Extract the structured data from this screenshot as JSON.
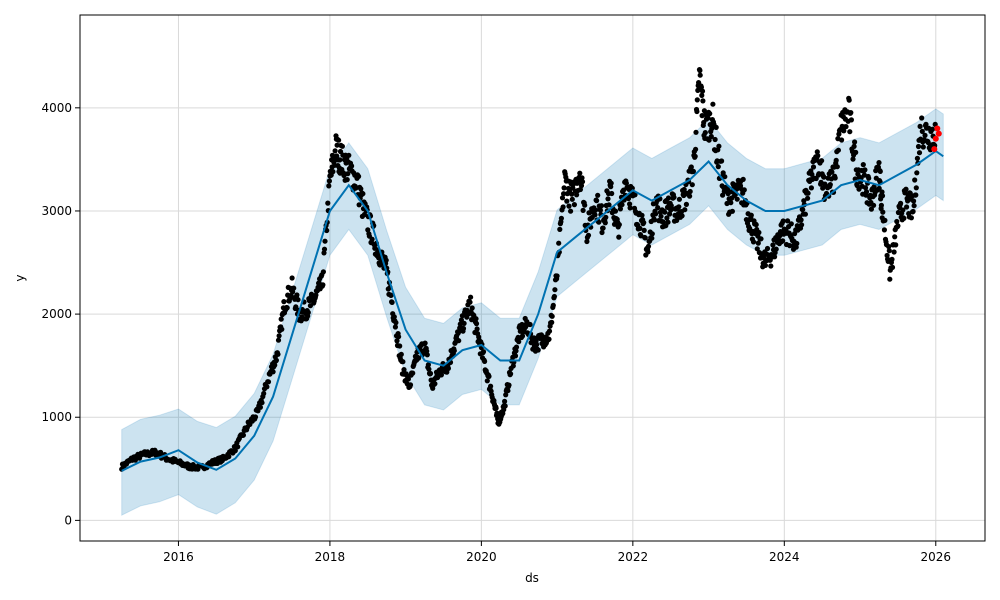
{
  "chart_data": {
    "type": "line",
    "title": "",
    "xlabel": "ds",
    "ylabel": "y",
    "x_ticks": [
      "2016",
      "2018",
      "2020",
      "2022",
      "2024",
      "2026"
    ],
    "y_ticks": [
      "0",
      "1000",
      "2000",
      "3000",
      "4000"
    ],
    "xlim": [
      2014.7,
      2026.65
    ],
    "ylim": [
      -200,
      4900
    ],
    "grid": true,
    "colors": {
      "observed": "#000000",
      "forecast_line": "#0072B2",
      "uncertainty_band": "#0072B2",
      "highlight": "#ff0000"
    },
    "series": [
      {
        "kind": "forecast",
        "x": [
          2015.25,
          2015.5,
          2015.75,
          2016.0,
          2016.25,
          2016.5,
          2016.75,
          2017.0,
          2017.25,
          2017.5,
          2017.75,
          2018.0,
          2018.25,
          2018.5,
          2018.75,
          2019.0,
          2019.25,
          2019.5,
          2019.75,
          2020.0,
          2020.25,
          2020.5,
          2020.75,
          2021.0,
          2021.25,
          2021.5,
          2021.75,
          2022.0,
          2022.25,
          2022.5,
          2022.75,
          2023.0,
          2023.25,
          2023.5,
          2023.75,
          2024.0,
          2024.25,
          2024.5,
          2024.75,
          2025.0,
          2025.25,
          2025.5,
          2025.75,
          2026.0,
          2026.1
        ],
        "values": [
          480,
          570,
          610,
          680,
          560,
          490,
          600,
          820,
          1200,
          1800,
          2400,
          3000,
          3250,
          3000,
          2400,
          1850,
          1550,
          1500,
          1650,
          1700,
          1550,
          1550,
          2000,
          2600,
          2750,
          2900,
          3050,
          3200,
          3100,
          3200,
          3300,
          3480,
          3250,
          3100,
          3000,
          3000,
          3050,
          3100,
          3250,
          3300,
          3250,
          3350,
          3450,
          3580,
          3530
        ],
        "lower": [
          50,
          140,
          180,
          250,
          130,
          60,
          170,
          390,
          770,
          1370,
          1970,
          2570,
          2820,
          2570,
          1970,
          1420,
          1120,
          1070,
          1220,
          1270,
          1120,
          1120,
          1570,
          2170,
          2320,
          2470,
          2620,
          2770,
          2670,
          2770,
          2870,
          3050,
          2820,
          2670,
          2570,
          2570,
          2620,
          2670,
          2820,
          2870,
          2820,
          2920,
          3020,
          3150,
          3100
        ],
        "upper": [
          880,
          980,
          1020,
          1080,
          960,
          900,
          1010,
          1230,
          1610,
          2210,
          2810,
          3410,
          3660,
          3410,
          2810,
          2260,
          1960,
          1910,
          2060,
          2110,
          1960,
          1960,
          2410,
          3010,
          3160,
          3310,
          3460,
          3610,
          3510,
          3610,
          3710,
          3890,
          3660,
          3510,
          3410,
          3410,
          3460,
          3510,
          3660,
          3710,
          3660,
          3760,
          3860,
          3990,
          3940
        ]
      },
      {
        "kind": "observed",
        "x": [
          2015.25,
          2015.4,
          2015.55,
          2015.7,
          2015.85,
          2016.0,
          2016.15,
          2016.3,
          2016.45,
          2016.6,
          2016.75,
          2016.9,
          2017.05,
          2017.2,
          2017.3,
          2017.4,
          2017.5,
          2017.6,
          2017.7,
          2017.8,
          2017.9,
          2018.0,
          2018.08,
          2018.15,
          2018.25,
          2018.35,
          2018.45,
          2018.55,
          2018.65,
          2018.75,
          2018.85,
          2018.95,
          2019.05,
          2019.15,
          2019.25,
          2019.35,
          2019.45,
          2019.55,
          2019.65,
          2019.75,
          2019.85,
          2019.95,
          2020.05,
          2020.15,
          2020.22,
          2020.3,
          2020.4,
          2020.5,
          2020.6,
          2020.7,
          2020.8,
          2020.9,
          2021.0,
          2021.1,
          2021.2,
          2021.3,
          2021.4,
          2021.5,
          2021.6,
          2021.7,
          2021.8,
          2021.9,
          2022.0,
          2022.1,
          2022.2,
          2022.3,
          2022.4,
          2022.5,
          2022.6,
          2022.7,
          2022.8,
          2022.88,
          2022.95,
          2023.05,
          2023.15,
          2023.25,
          2023.35,
          2023.45,
          2023.55,
          2023.65,
          2023.75,
          2023.85,
          2023.95,
          2024.05,
          2024.15,
          2024.25,
          2024.35,
          2024.45,
          2024.55,
          2024.65,
          2024.75,
          2024.85,
          2024.95,
          2025.05,
          2025.15,
          2025.25,
          2025.3,
          2025.4,
          2025.5,
          2025.6,
          2025.7,
          2025.8,
          2025.9
        ],
        "values": [
          520,
          600,
          640,
          660,
          600,
          560,
          520,
          510,
          560,
          600,
          700,
          900,
          1050,
          1400,
          1600,
          2100,
          2250,
          2000,
          2050,
          2150,
          2300,
          3300,
          3600,
          3500,
          3400,
          3300,
          3000,
          2800,
          2600,
          2400,
          2000,
          1500,
          1300,
          1600,
          1700,
          1300,
          1450,
          1500,
          1700,
          1900,
          2100,
          1800,
          1500,
          1200,
          950,
          1100,
          1500,
          1800,
          1900,
          1700,
          1750,
          1800,
          2400,
          3300,
          3100,
          3400,
          2800,
          3100,
          2900,
          3200,
          2800,
          3300,
          3100,
          2900,
          2600,
          3100,
          2950,
          3050,
          3000,
          3150,
          3400,
          4300,
          3800,
          3900,
          3400,
          3100,
          3150,
          3200,
          2900,
          2700,
          2500,
          2600,
          2800,
          2800,
          2700,
          3000,
          3300,
          3500,
          3200,
          3300,
          3800,
          3950,
          3400,
          3300,
          3100,
          3400,
          3000,
          2400,
          2900,
          3100,
          3000,
          3800,
          3750
        ]
      },
      {
        "kind": "highlight",
        "x": [
          2025.98,
          2026.0,
          2026.02,
          2026.04
        ],
        "values": [
          3600,
          3700,
          3800,
          3750
        ]
      }
    ]
  }
}
